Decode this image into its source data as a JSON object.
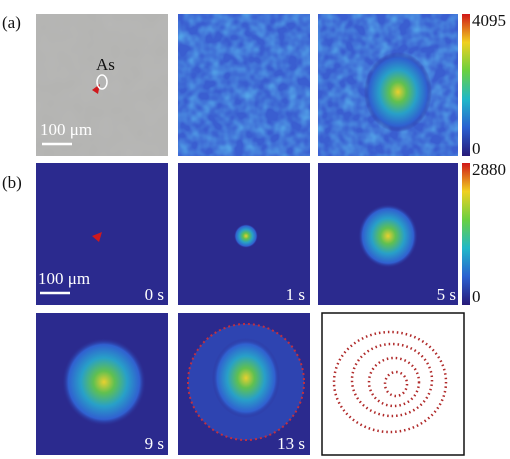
{
  "panel_a": {
    "label": "(a)",
    "annotation": "As",
    "scale_bar": "100 μm",
    "colorbar": {
      "max": 4095,
      "min": 0
    }
  },
  "panel_b": {
    "label": "(b)",
    "scale_bar": "100 μm",
    "colorbar": {
      "max": 2880,
      "min": 0
    },
    "times": [
      "0 s",
      "1 s",
      "5 s",
      "9 s",
      "13 s"
    ]
  }
}
